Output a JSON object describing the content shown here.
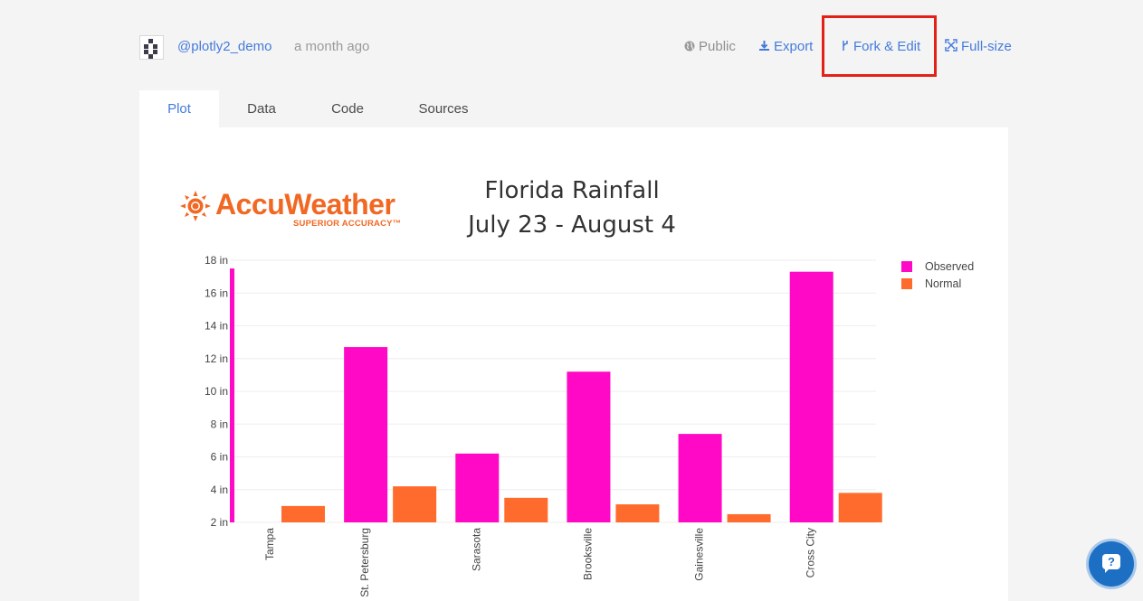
{
  "header": {
    "username": "@plotly2_demo",
    "timestamp": "a month ago",
    "actions": {
      "public": "Public",
      "export": "Export",
      "fork_edit": "Fork & Edit",
      "full_size": "Full-size"
    }
  },
  "tabs": [
    {
      "label": "Plot",
      "active": true
    },
    {
      "label": "Data",
      "active": false
    },
    {
      "label": "Code",
      "active": false
    },
    {
      "label": "Sources",
      "active": false
    }
  ],
  "logo": {
    "wordmark": "AccuWeather",
    "tagline": "SUPERIOR ACCURACY™"
  },
  "colors": {
    "link": "#447bdc",
    "observed": "#ff09c6",
    "normal": "#ff6b2c",
    "highlight": "#e32119",
    "accuweather_orange": "#f26722"
  },
  "chart_data": {
    "type": "bar",
    "title_line1": "Florida Rainfall",
    "title_line2": "July 23 - August 4",
    "categories": [
      "Tampa",
      "St. Petersburg",
      "Sarasota",
      "Brooksville",
      "Gainesville",
      "Cross City"
    ],
    "series": [
      {
        "name": "Observed",
        "color": "#ff09c6",
        "values": [
          17.5,
          12.7,
          6.2,
          11.2,
          7.4,
          17.3
        ]
      },
      {
        "name": "Normal",
        "color": "#ff6b2c",
        "values": [
          3.0,
          4.2,
          3.5,
          3.1,
          2.5,
          3.8
        ]
      }
    ],
    "ylim": [
      2,
      18
    ],
    "yticks": [
      2,
      4,
      6,
      8,
      10,
      12,
      14,
      16,
      18
    ],
    "ytick_suffix": " in",
    "legend_position": "top-right",
    "grid": true
  },
  "icons": {
    "public": "globe-icon",
    "export": "download-icon",
    "fork": "fork-icon",
    "full_size": "expand-icon",
    "help": "help-chat-icon"
  }
}
